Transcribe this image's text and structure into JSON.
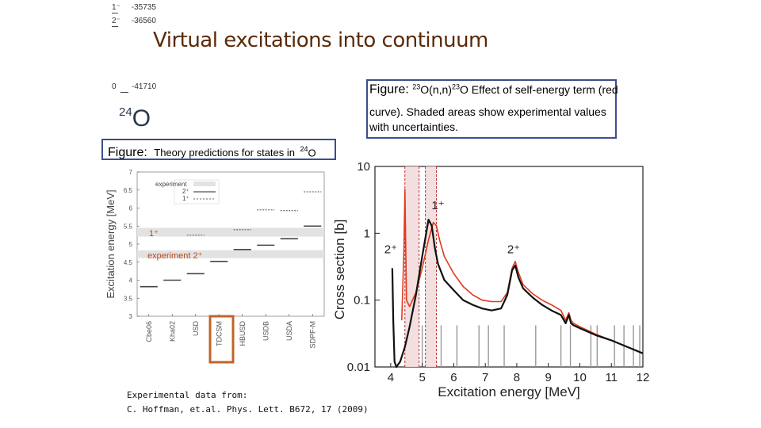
{
  "slide": {
    "title": "Virtual excitations into continuum",
    "top_levels": [
      {
        "label": "1⁻",
        "value": "-35735"
      },
      {
        "label": "2⁻",
        "value": "-36560"
      },
      {
        "label": "0",
        "value": "-41710"
      }
    ],
    "nucleus_label": {
      "mass": "24",
      "symbol": "O"
    },
    "right_caption": {
      "prefix": "Figure:",
      "mass1": "23",
      "mid": "O(n,n)",
      "mass2": "23",
      "rest": "O Effect of self-energy term (red",
      "line2": "curve). Shaded areas show experimental values with uncertainties."
    },
    "left_caption": {
      "prefix": "Figure:",
      "text": "Theory predictions for states in",
      "mass": "24",
      "symbol": "O"
    },
    "footer": {
      "line1": "Experimental data from:",
      "line2": "C. Hoffman, et.al. Phys. Lett. B672, 17 (2009)"
    },
    "colors": {
      "title": "#5a2a08",
      "frame": "#3c4e8c",
      "highlight": "#c0642a",
      "red_curve": "#e03a1e",
      "annotation": "#b34a1a"
    }
  },
  "chart_data": [
    {
      "type": "scatter",
      "ylabel": "Excitation energy [MeV]",
      "ylim": [
        3,
        7
      ],
      "yticks": [
        "3",
        "3.5",
        "4",
        "4.5",
        "5",
        "5.5",
        "6",
        "6.5",
        "7"
      ],
      "categories": [
        "Cbe06",
        "Kha02",
        "USD",
        "TDCSM",
        "HBUSD",
        "USDB",
        "USDA",
        "SDPF-M"
      ],
      "highlighted_category": "TDCSM",
      "legend": [
        "experiment",
        "2⁺",
        "1⁺"
      ],
      "experiment_bands": [
        {
          "label": "1⁺",
          "center": 5.33,
          "halfwidth": 0.12
        },
        {
          "label": "experiment 2⁺",
          "center": 4.72,
          "halfwidth": 0.11
        }
      ],
      "series": [
        {
          "name": "2⁺",
          "values": [
            3.82,
            4.0,
            4.18,
            4.52,
            4.85,
            4.97,
            5.15,
            5.5
          ]
        },
        {
          "name": "1⁺",
          "values": [
            null,
            null,
            5.25,
            null,
            5.4,
            5.95,
            5.93,
            6.45
          ]
        }
      ]
    },
    {
      "type": "line",
      "xlabel": "Excitation energy [MeV]",
      "ylabel": "Cross section [b]",
      "xlim": [
        3.5,
        12
      ],
      "ylim": [
        0.01,
        10
      ],
      "yscale": "log",
      "xticks": [
        "4",
        "5",
        "6",
        "7",
        "8",
        "9",
        "10",
        "11",
        "12"
      ],
      "yticks": [
        "0.01",
        "0.1",
        "1",
        "10"
      ],
      "annotations": [
        {
          "text": "2⁺",
          "x": 4.0,
          "y": 0.5
        },
        {
          "text": "1⁺",
          "x": 5.5,
          "y": 2.3
        },
        {
          "text": "2⁺",
          "x": 7.9,
          "y": 0.5
        }
      ],
      "shaded_bands": [
        [
          4.45,
          4.9
        ],
        [
          5.1,
          5.45
        ]
      ],
      "gray_lines_x": [
        5.0,
        5.6,
        6.1,
        6.8,
        7.1,
        7.6,
        8.6,
        9.4,
        9.7,
        10.35,
        10.55,
        11.1,
        11.4,
        11.7,
        11.9
      ],
      "series": [
        {
          "name": "black",
          "x": [
            4.05,
            4.08,
            4.12,
            4.18,
            4.3,
            4.45,
            4.6,
            4.8,
            5.0,
            5.2,
            5.3,
            5.4,
            5.5,
            5.7,
            6.0,
            6.3,
            6.6,
            6.9,
            7.2,
            7.5,
            7.7,
            7.85,
            7.95,
            8.05,
            8.2,
            8.5,
            8.8,
            9.1,
            9.4,
            9.55,
            9.65,
            9.72,
            9.8,
            10.0,
            10.5,
            11.0,
            11.5,
            12.0
          ],
          "y": [
            0.3,
            0.05,
            0.012,
            0.01,
            0.012,
            0.02,
            0.04,
            0.12,
            0.45,
            1.6,
            1.3,
            0.6,
            0.35,
            0.2,
            0.14,
            0.1,
            0.085,
            0.075,
            0.07,
            0.075,
            0.12,
            0.28,
            0.33,
            0.22,
            0.15,
            0.11,
            0.085,
            0.07,
            0.06,
            0.045,
            0.06,
            0.045,
            0.042,
            0.038,
            0.03,
            0.025,
            0.02,
            0.016
          ]
        },
        {
          "name": "red",
          "x": [
            4.35,
            4.42,
            4.45,
            4.5,
            4.6,
            4.8,
            5.0,
            5.2,
            5.35,
            5.45,
            5.55,
            5.7,
            6.0,
            6.3,
            6.6,
            6.9,
            7.2,
            7.5,
            7.7,
            7.85,
            7.95,
            8.05,
            8.2,
            8.5,
            8.8,
            9.1,
            9.4,
            9.55,
            9.65,
            9.72,
            9.8,
            10.0,
            10.5,
            11.0,
            11.5,
            12.0
          ],
          "y": [
            0.05,
            0.6,
            4.5,
            0.1,
            0.08,
            0.13,
            0.3,
            0.8,
            1.45,
            1.3,
            0.8,
            0.45,
            0.25,
            0.16,
            0.12,
            0.1,
            0.095,
            0.095,
            0.13,
            0.3,
            0.38,
            0.26,
            0.17,
            0.125,
            0.1,
            0.085,
            0.07,
            0.05,
            0.065,
            0.05,
            0.045,
            0.04,
            0.031,
            0.025,
            0.02,
            0.016
          ]
        }
      ]
    }
  ]
}
